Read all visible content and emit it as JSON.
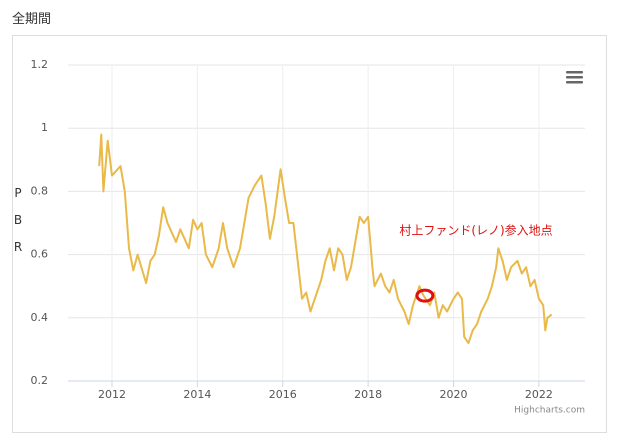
{
  "page_title": "全期間",
  "chart_data": {
    "type": "line",
    "y_label": "PBR",
    "credits": "Highcharts.com",
    "x": [
      2011.7,
      2011.75,
      2011.8,
      2011.9,
      2012.0,
      2012.2,
      2012.3,
      2012.4,
      2012.5,
      2012.6,
      2012.8,
      2012.9,
      2013.0,
      2013.1,
      2013.2,
      2013.3,
      2013.5,
      2013.6,
      2013.8,
      2013.9,
      2014.0,
      2014.1,
      2014.2,
      2014.35,
      2014.5,
      2014.6,
      2014.7,
      2014.85,
      2015.0,
      2015.1,
      2015.2,
      2015.35,
      2015.5,
      2015.6,
      2015.7,
      2015.8,
      2015.95,
      2016.05,
      2016.15,
      2016.25,
      2016.35,
      2016.45,
      2016.55,
      2016.65,
      2016.75,
      2016.9,
      2017.0,
      2017.1,
      2017.2,
      2017.3,
      2017.4,
      2017.5,
      2017.6,
      2017.7,
      2017.8,
      2017.9,
      2018.0,
      2018.05,
      2018.1,
      2018.15,
      2018.3,
      2018.4,
      2018.5,
      2018.6,
      2018.7,
      2018.85,
      2018.95,
      2019.05,
      2019.2,
      2019.3,
      2019.45,
      2019.55,
      2019.65,
      2019.75,
      2019.85,
      2020.0,
      2020.1,
      2020.2,
      2020.25,
      2020.35,
      2020.45,
      2020.55,
      2020.65,
      2020.8,
      2020.9,
      2021.0,
      2021.05,
      2021.15,
      2021.25,
      2021.35,
      2021.5,
      2021.6,
      2021.7,
      2021.8,
      2021.9,
      2022.0,
      2022.1,
      2022.15,
      2022.2,
      2022.3
    ],
    "series": [
      {
        "name": "PBR",
        "color": "#e9b949",
        "values": [
          0.88,
          0.98,
          0.8,
          0.96,
          0.85,
          0.88,
          0.8,
          0.62,
          0.55,
          0.6,
          0.51,
          0.58,
          0.6,
          0.66,
          0.75,
          0.7,
          0.64,
          0.68,
          0.62,
          0.71,
          0.68,
          0.7,
          0.6,
          0.56,
          0.62,
          0.7,
          0.62,
          0.56,
          0.62,
          0.7,
          0.78,
          0.82,
          0.85,
          0.76,
          0.65,
          0.72,
          0.87,
          0.78,
          0.7,
          0.7,
          0.58,
          0.46,
          0.48,
          0.42,
          0.46,
          0.52,
          0.58,
          0.62,
          0.55,
          0.62,
          0.6,
          0.52,
          0.56,
          0.64,
          0.72,
          0.7,
          0.72,
          0.64,
          0.56,
          0.5,
          0.54,
          0.5,
          0.48,
          0.52,
          0.46,
          0.42,
          0.38,
          0.44,
          0.5,
          0.47,
          0.44,
          0.48,
          0.4,
          0.44,
          0.42,
          0.46,
          0.48,
          0.46,
          0.34,
          0.32,
          0.36,
          0.38,
          0.42,
          0.46,
          0.5,
          0.56,
          0.62,
          0.58,
          0.52,
          0.56,
          0.58,
          0.54,
          0.56,
          0.5,
          0.52,
          0.46,
          0.44,
          0.36,
          0.4,
          0.41
        ]
      }
    ],
    "xlim": [
      2010.97,
      2023.08
    ],
    "xticks": [
      2012,
      2014,
      2016,
      2018,
      2020,
      2022
    ],
    "ylim": [
      0.2,
      1.2
    ],
    "yticks": [
      0.2,
      0.4,
      0.6,
      0.8,
      1,
      1.2
    ],
    "grid": true,
    "annotation": {
      "text": "村上ファンド(レノ)参入地点",
      "x": 2019.33,
      "y": 0.47,
      "color": "#dd1111"
    }
  }
}
